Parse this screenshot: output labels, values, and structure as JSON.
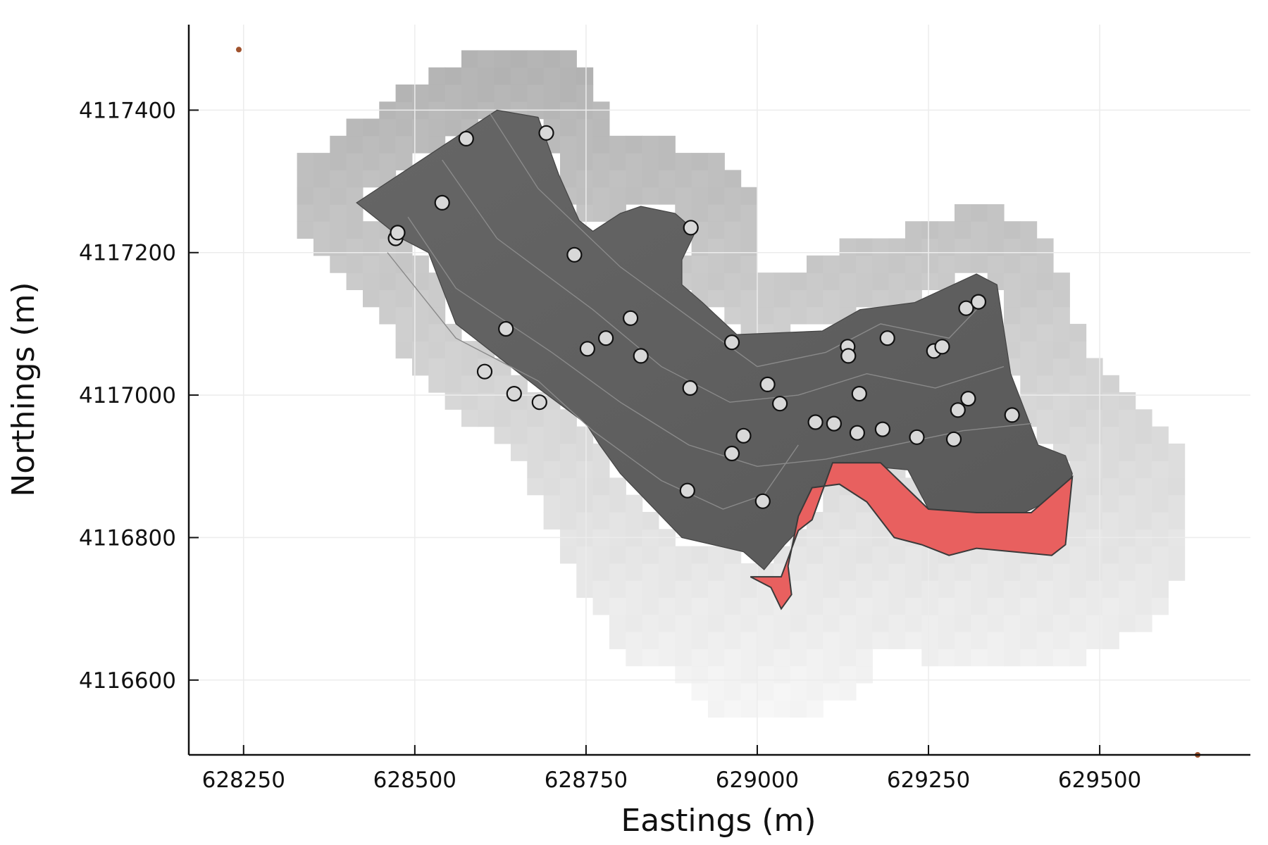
{
  "chart_data": {
    "type": "scatter",
    "title": "",
    "xlabel": "Eastings (m)",
    "ylabel": "Northings (m)",
    "xlim": [
      628170,
      629720
    ],
    "ylim": [
      4116495,
      4117520
    ],
    "grid": true,
    "legend": "none",
    "x_ticks": [
      628250,
      628500,
      628750,
      629000,
      629250,
      629500
    ],
    "y_ticks": [
      4116600,
      4116800,
      4117000,
      4117200,
      4117400
    ],
    "colors": {
      "background_shading": "#c8c8c8",
      "domain_fill": "#5c5c5c",
      "contour_lines": "#9a9a9a",
      "highlight_region": "#e8605f",
      "points_fill": "#d8d8d8",
      "points_stroke": "#111111",
      "corner_markers": "#a0522d"
    },
    "domain_polygon": [
      [
        628415,
        4117270
      ],
      [
        628620,
        4117400
      ],
      [
        628680,
        4117390
      ],
      [
        628710,
        4117310
      ],
      [
        628740,
        4117245
      ],
      [
        628760,
        4117230
      ],
      [
        628800,
        4117255
      ],
      [
        628830,
        4117265
      ],
      [
        628880,
        4117255
      ],
      [
        628910,
        4117230
      ],
      [
        628890,
        4117190
      ],
      [
        628890,
        4117155
      ],
      [
        628920,
        4117130
      ],
      [
        628970,
        4117085
      ],
      [
        629095,
        4117090
      ],
      [
        629150,
        4117120
      ],
      [
        629230,
        4117130
      ],
      [
        629320,
        4117170
      ],
      [
        629350,
        4117155
      ],
      [
        629370,
        4117030
      ],
      [
        629410,
        4116930
      ],
      [
        629450,
        4116915
      ],
      [
        629460,
        4116890
      ],
      [
        629455,
        4116865
      ],
      [
        629390,
        4116835
      ],
      [
        629310,
        4116830
      ],
      [
        629250,
        4116840
      ],
      [
        629220,
        4116895
      ],
      [
        629110,
        4116905
      ],
      [
        629080,
        4116825
      ],
      [
        629060,
        4116810
      ],
      [
        629040,
        4116790
      ],
      [
        629010,
        4116755
      ],
      [
        628980,
        4116780
      ],
      [
        628890,
        4116800
      ],
      [
        628800,
        4116890
      ],
      [
        628770,
        4116930
      ],
      [
        628750,
        4116960
      ],
      [
        628680,
        4117010
      ],
      [
        628560,
        4117100
      ],
      [
        628520,
        4117200
      ],
      [
        628480,
        4117220
      ]
    ],
    "highlight_polygon": [
      [
        629035,
        4116745
      ],
      [
        629060,
        4116810
      ],
      [
        629080,
        4116825
      ],
      [
        629110,
        4116905
      ],
      [
        629180,
        4116905
      ],
      [
        629250,
        4116840
      ],
      [
        629320,
        4116835
      ],
      [
        629400,
        4116835
      ],
      [
        629460,
        4116885
      ],
      [
        629450,
        4116790
      ],
      [
        629430,
        4116775
      ],
      [
        629320,
        4116785
      ],
      [
        629280,
        4116775
      ],
      [
        629240,
        4116790
      ],
      [
        629200,
        4116800
      ],
      [
        629160,
        4116850
      ],
      [
        629120,
        4116875
      ],
      [
        629080,
        4116870
      ],
      [
        629060,
        4116830
      ],
      [
        629045,
        4116760
      ],
      [
        629050,
        4116720
      ],
      [
        629035,
        4116700
      ],
      [
        629020,
        4116730
      ],
      [
        628990,
        4116745
      ]
    ],
    "points": [
      [
        628472,
        4117220
      ],
      [
        628475,
        4117228
      ],
      [
        628540,
        4117270
      ],
      [
        628575,
        4117360
      ],
      [
        628692,
        4117368
      ],
      [
        628733,
        4117197
      ],
      [
        628633,
        4117093
      ],
      [
        628602,
        4117033
      ],
      [
        628645,
        4117002
      ],
      [
        628682,
        4116990
      ],
      [
        628752,
        4117065
      ],
      [
        628779,
        4117080
      ],
      [
        628815,
        4117108
      ],
      [
        628830,
        4117055
      ],
      [
        628903,
        4117235
      ],
      [
        628963,
        4117074
      ],
      [
        628902,
        4117010
      ],
      [
        628898,
        4116866
      ],
      [
        628963,
        4116918
      ],
      [
        628980,
        4116943
      ],
      [
        629008,
        4116851
      ],
      [
        629015,
        4117015
      ],
      [
        629033,
        4116988
      ],
      [
        629085,
        4116962
      ],
      [
        629112,
        4116960
      ],
      [
        629132,
        4117068
      ],
      [
        629133,
        4117055
      ],
      [
        629149,
        4117002
      ],
      [
        629146,
        4116947
      ],
      [
        629183,
        4116952
      ],
      [
        629190,
        4117080
      ],
      [
        629233,
        4116941
      ],
      [
        629258,
        4117062
      ],
      [
        629270,
        4117068
      ],
      [
        629287,
        4116938
      ],
      [
        629293,
        4116979
      ],
      [
        629305,
        4117122
      ],
      [
        629323,
        4117131
      ],
      [
        629308,
        4116995
      ],
      [
        629372,
        4116972
      ]
    ],
    "corner_markers": [
      [
        628243,
        4117485
      ],
      [
        629643,
        4116495
      ]
    ]
  }
}
